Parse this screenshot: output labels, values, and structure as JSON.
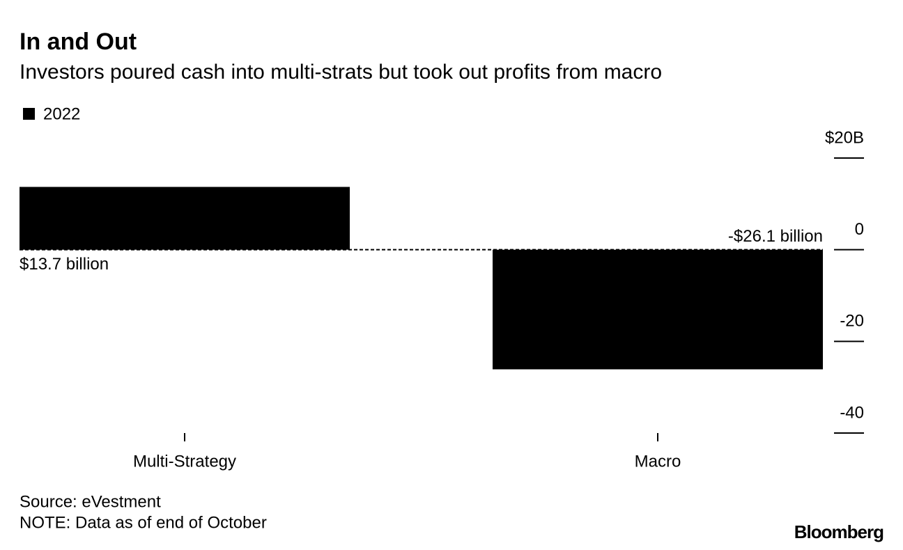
{
  "chart_data": {
    "type": "bar",
    "title": "In and Out",
    "subtitle": "Investors poured cash into multi-strats but took out profits from macro",
    "legend": "2022",
    "categories": [
      "Multi-Strategy",
      "Macro"
    ],
    "values": [
      13.7,
      -26.1
    ],
    "value_labels": [
      "$13.7 billion",
      "-$26.1 billion"
    ],
    "color": "#000000",
    "ylim": [
      -40,
      20
    ],
    "yticks": [
      {
        "value": 20,
        "label": "$20B"
      },
      0,
      -20,
      -40
    ],
    "source": "Source: eVestment",
    "note": "NOTE: Data as of end of October",
    "brand": "Bloomberg"
  }
}
